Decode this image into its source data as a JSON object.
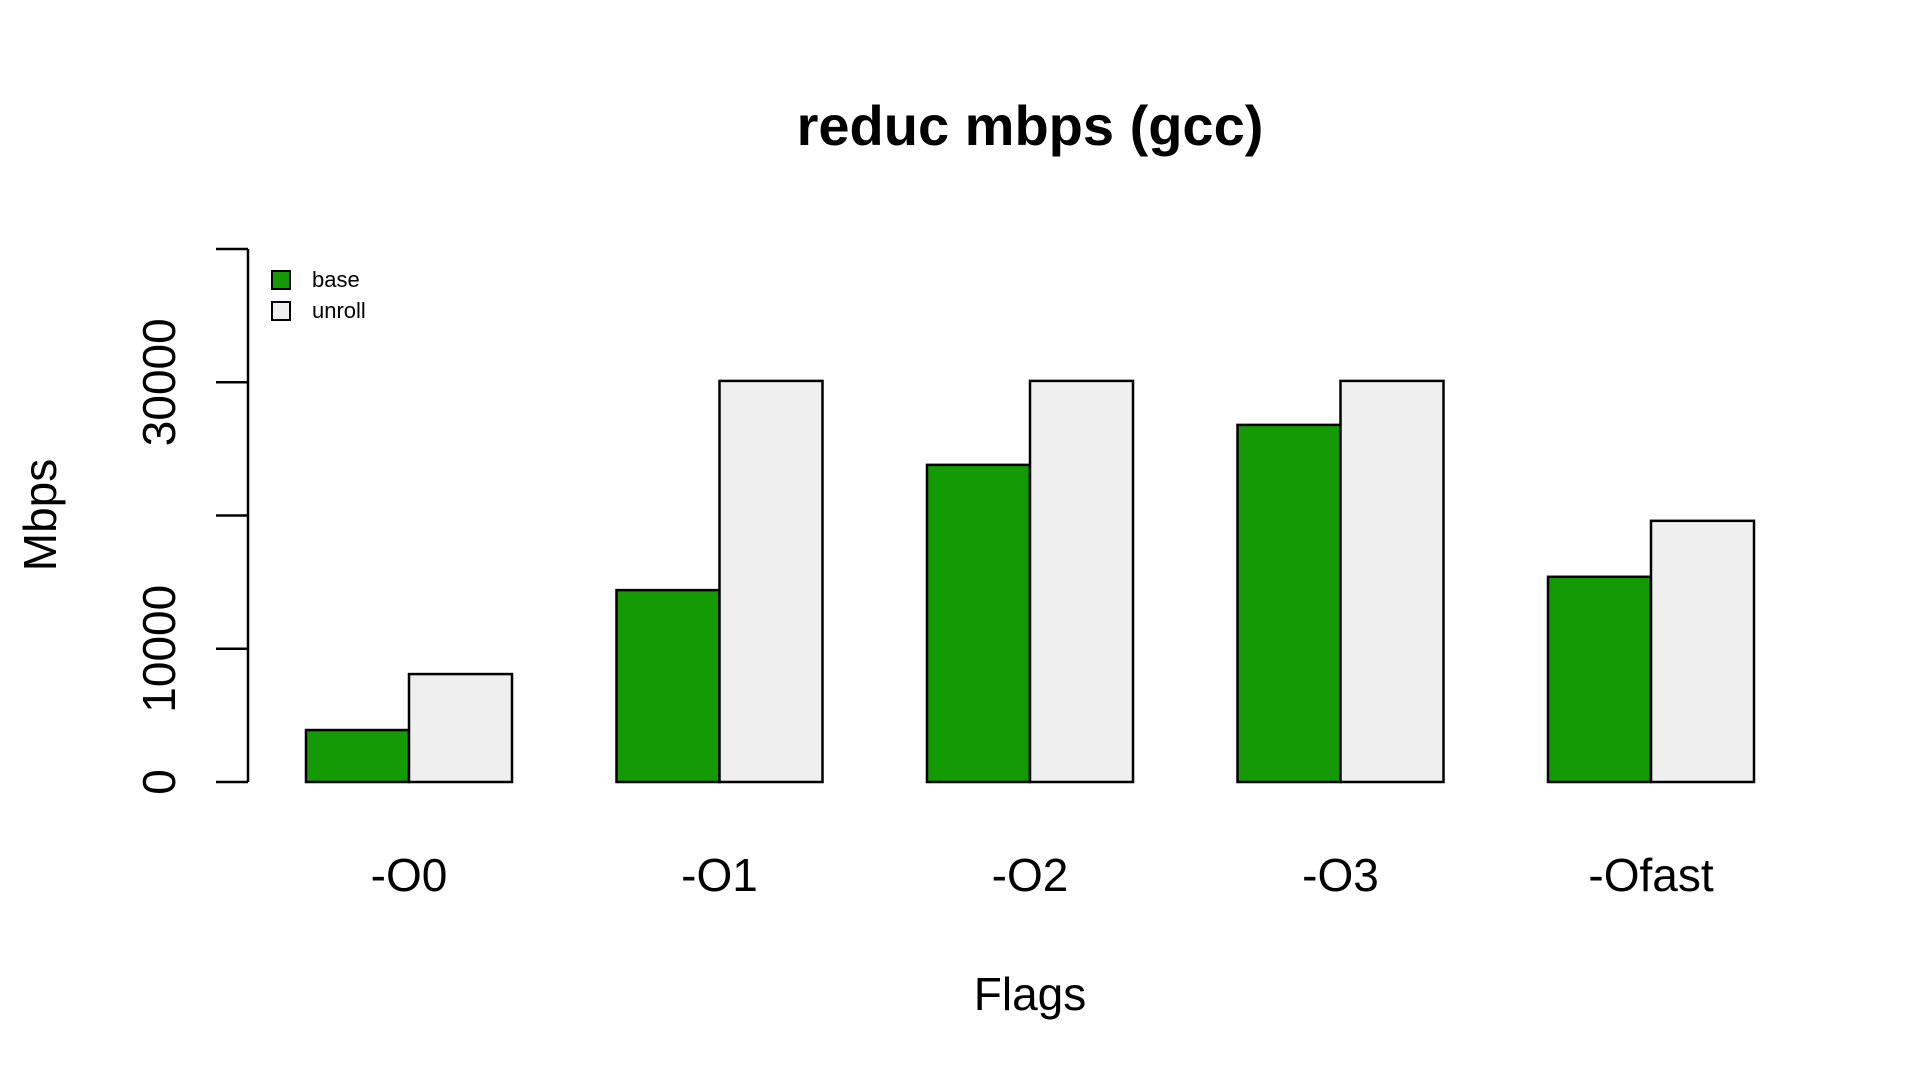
{
  "chart_data": {
    "type": "bar",
    "title": "reduc mbps (gcc)",
    "xlabel": "Flags",
    "ylabel": "Mbps",
    "categories": [
      "-O0",
      "-O1",
      "-O2",
      "-O3",
      "-Ofast"
    ],
    "series": [
      {
        "name": "base",
        "color": "#149a04",
        "values": [
          3900,
          14400,
          23800,
          26800,
          15400
        ]
      },
      {
        "name": "unroll",
        "color": "#efefef",
        "values": [
          8100,
          30100,
          30100,
          30100,
          19600
        ]
      }
    ],
    "ylim": [
      0,
      40000
    ],
    "yticks": [
      0,
      10000,
      20000,
      30000,
      40000
    ],
    "ytick_labels": [
      "0",
      "10000",
      "",
      "30000",
      ""
    ],
    "grid": false,
    "legend_position": "top-left"
  }
}
